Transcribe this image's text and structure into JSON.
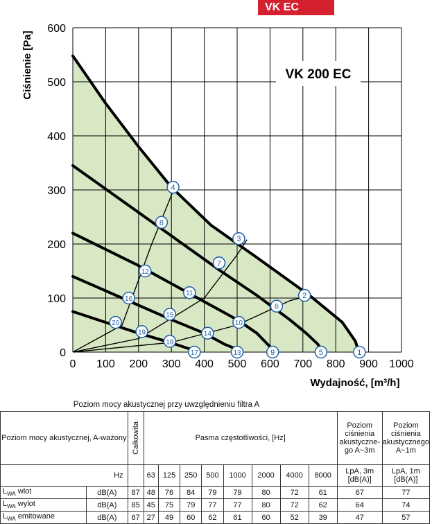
{
  "badge": "VK EC",
  "chart_data": {
    "type": "line",
    "title": "VK 200 EC",
    "xlabel": "Wydajność, [m³/h]",
    "ylabel": "Ciśnienie [Pa]",
    "xlim": [
      0,
      1000
    ],
    "ylim": [
      0,
      600
    ],
    "xticks": [
      "0",
      "100",
      "200",
      "300",
      "400",
      "500",
      "600",
      "700",
      "800",
      "900",
      "1000"
    ],
    "yticks": [
      "0",
      "100",
      "200",
      "300",
      "400",
      "500",
      "600"
    ],
    "fill_color": "#d8e7c4",
    "series": [
      {
        "x": [
          0,
          100,
          200,
          300,
          420,
          560,
          720,
          820,
          860,
          870
        ],
        "y": [
          548,
          460,
          380,
          305,
          235,
          175,
          105,
          55,
          20,
          0
        ]
      },
      {
        "x": [
          0,
          150,
          300,
          450,
          560,
          660,
          710,
          745,
          760
        ],
        "y": [
          345,
          280,
          215,
          150,
          105,
          60,
          35,
          15,
          0
        ]
      },
      {
        "x": [
          0,
          200,
          350,
          500,
          560,
          600,
          612
        ],
        "y": [
          220,
          160,
          110,
          60,
          35,
          10,
          0
        ]
      },
      {
        "x": [
          0,
          150,
          300,
          400,
          460,
          500,
          510
        ],
        "y": [
          140,
          100,
          60,
          35,
          15,
          5,
          0
        ]
      },
      {
        "x": [
          0,
          100,
          200,
          300,
          360,
          383
        ],
        "y": [
          75,
          55,
          35,
          17,
          5,
          0
        ]
      }
    ],
    "system_curves": [
      {
        "x": [
          0,
          150,
          240,
          310
        ],
        "y": [
          0,
          50,
          200,
          305
        ]
      },
      {
        "x": [
          0,
          200,
          400,
          500,
          530
        ],
        "y": [
          0,
          25,
          100,
          180,
          208
        ]
      },
      {
        "x": [
          0,
          300,
          500,
          660,
          720
        ],
        "y": [
          0,
          18,
          50,
          95,
          105
        ]
      }
    ],
    "markers": [
      {
        "label": "1",
        "x": 872,
        "y": 0
      },
      {
        "label": "2",
        "x": 705,
        "y": 105
      },
      {
        "label": "3",
        "x": 505,
        "y": 210
      },
      {
        "label": "4",
        "x": 305,
        "y": 305
      },
      {
        "label": "5",
        "x": 755,
        "y": 0
      },
      {
        "label": "6",
        "x": 620,
        "y": 85
      },
      {
        "label": "7",
        "x": 445,
        "y": 165
      },
      {
        "label": "8",
        "x": 270,
        "y": 240
      },
      {
        "label": "9",
        "x": 608,
        "y": 0
      },
      {
        "label": "10",
        "x": 505,
        "y": 55
      },
      {
        "label": "11",
        "x": 355,
        "y": 110
      },
      {
        "label": "12",
        "x": 220,
        "y": 150
      },
      {
        "label": "13",
        "x": 500,
        "y": 0
      },
      {
        "label": "14",
        "x": 410,
        "y": 35
      },
      {
        "label": "15",
        "x": 295,
        "y": 70
      },
      {
        "label": "16",
        "x": 170,
        "y": 100
      },
      {
        "label": "17",
        "x": 370,
        "y": 0
      },
      {
        "label": "18",
        "x": 295,
        "y": 20
      },
      {
        "label": "19",
        "x": 210,
        "y": 38
      },
      {
        "label": "20",
        "x": 130,
        "y": 55
      }
    ]
  },
  "table": {
    "caption": "Poziom mocy akustycznej przy uwzględnieniu filtra A",
    "col_header": "Poziom mocy akustycznej, A-ważony",
    "total_label": "Całkowita",
    "bands_label": "Pasma częstotliwości, [Hz]",
    "lpa3_header": "Poziom ciśnienia akustyczne-go A~3m",
    "lpa1_header": "Poziom ciśnienia akustycznego A~1m",
    "hz_label": "Hz",
    "bands": [
      "63",
      "125",
      "250",
      "500",
      "1000",
      "2000",
      "4000",
      "8000"
    ],
    "lpa3_sub": "LpA, 3m [dB(A)]",
    "lpa1_sub": "LpA, 1m [dB(A)]",
    "rows": [
      {
        "name": "wlot",
        "unit": "dB(A)",
        "total": "87",
        "values": [
          "48",
          "76",
          "84",
          "79",
          "79",
          "80",
          "72",
          "61"
        ],
        "lpa3": "67",
        "lpa1": "77"
      },
      {
        "name": "wylot",
        "unit": "dB(A)",
        "total": "85",
        "values": [
          "45",
          "75",
          "79",
          "77",
          "77",
          "80",
          "72",
          "62"
        ],
        "lpa3": "64",
        "lpa1": "74"
      },
      {
        "name": "emitowane",
        "unit": "dB(A)",
        "total": "67",
        "values": [
          "27",
          "49",
          "60",
          "62",
          "61",
          "60",
          "52",
          "39"
        ],
        "lpa3": "47",
        "lpa1": "57"
      }
    ]
  }
}
